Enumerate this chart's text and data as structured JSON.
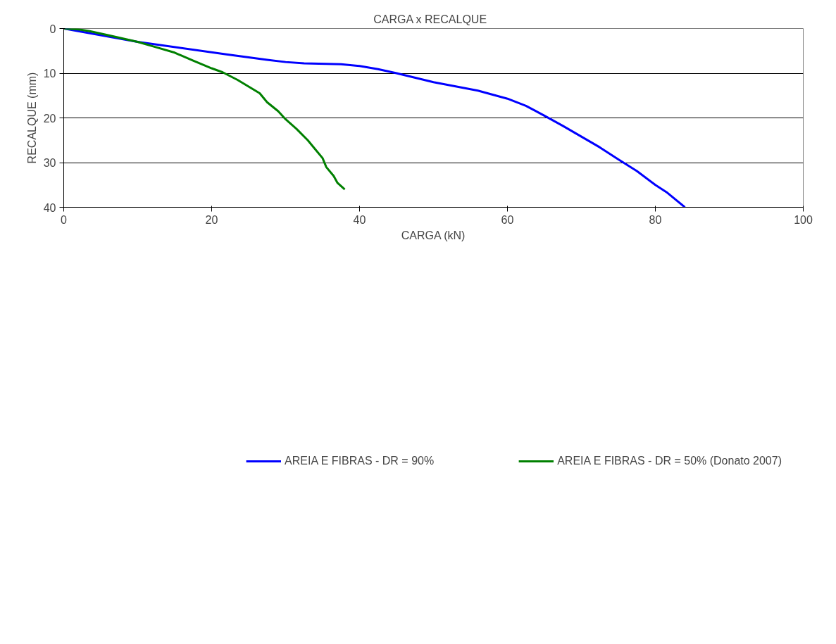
{
  "chart_data": {
    "type": "line",
    "title": "CARGA  x  RECALQUE",
    "xlabel": "CARGA (kN)",
    "ylabel": "RECALQUE (mm)",
    "xlim": [
      0,
      100
    ],
    "xticks": [
      0,
      20,
      40,
      60,
      80,
      100
    ],
    "ylim": [
      40,
      0
    ],
    "yticks": [
      0,
      10,
      20,
      30,
      40
    ],
    "grid": "y",
    "legend": "bottom",
    "marker": "none",
    "line_style": "solid",
    "series": [
      {
        "name": "AREIA E FIBRAS - DR = 90%",
        "color": "#0000ff",
        "x": [
          0,
          10,
          22,
          27.5,
          30,
          32.5,
          37.5,
          40,
          42.5,
          45,
          50,
          56,
          58,
          60,
          62.5,
          65,
          67.5,
          70,
          72.5,
          75,
          77.5,
          80,
          81.5,
          84
        ],
        "values": [
          0,
          3,
          5.8,
          7,
          7.5,
          7.8,
          8,
          8.4,
          9.1,
          10,
          12,
          13.9,
          14.8,
          15.7,
          17.3,
          19.5,
          21.8,
          24.2,
          26.6,
          29.3,
          31.9,
          35,
          36.6,
          40
        ]
      },
      {
        "name": "AREIA E FIBRAS - DR = 50% (Donato 2007)",
        "color": "#008000",
        "x": [
          0,
          2,
          3.5,
          6,
          10,
          12.5,
          15,
          17.5,
          20,
          21.5,
          23.5,
          25,
          26.5,
          27.5,
          29,
          30,
          31.5,
          33,
          34,
          35,
          35.5,
          36.5,
          37,
          38
        ],
        "values": [
          0,
          0.2,
          0.6,
          1.5,
          3,
          4.2,
          5.4,
          7.2,
          8.9,
          9.8,
          11.5,
          13,
          14.5,
          16.5,
          18.5,
          20.3,
          22.5,
          25,
          27,
          29,
          31,
          33,
          34.5,
          36
        ]
      }
    ]
  }
}
